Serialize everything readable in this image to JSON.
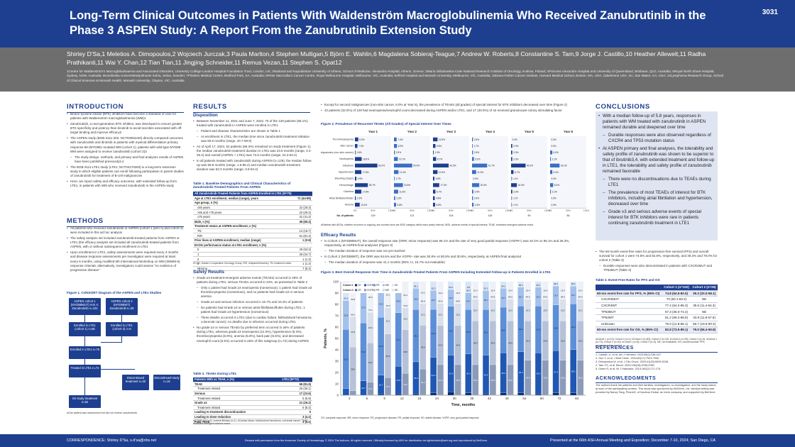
{
  "header": {
    "title": "Long-Term Clinical Outcomes in Patients With Waldenström Macroglobulinemia Who Received Zanubrutinib in the Phase 3 ASPEN Study: A Report From the Zanubrutinib Extension Study",
    "poster_number": "3031"
  },
  "authors": "Shirley D'Sa,1 Meletios A. Dimopoulos,2 Wojciech Jurczak,3 Paula Marlton,4 Stephen Mulligan,5 Björn E. Wahlin,6 Magdalena Sobieraj-Teague,7 Andrew W. Roberts,8 Constantine S. Tam,9 Jorge J. Castillo,10 Heather Allewelt,11 Radha Prathikanti,11 Wai Y. Chan,12 Tian Tian,11 Jingjing Schneider,11 Remus Vezan,11 Stephen S. Opat12",
  "affiliations": "1Centre for Waldenström's Macroglobulinaemia and Associated Disorders, University College London Hospital Foundation Trust, London, UK; 2National and Kapodistrian University of Athens, School of Medicine, Alexandra Hospital, Athens, Greece; 3Maria Sklodowska-Curie National Research Institute of Oncology, Krakow, Poland; 4Princess Alexandra Hospital and University of Queensland, Brisbane, QLD, Australia; 5Royal North Shore Hospital, Sydney, NSW, Australia; 6Karolinska Universitetssjukhuset Solna, Solna, Sweden; 7Flinders Medical Centre, Bedford Park, SA, Australia; 8Peter MacCallum Cancer Centre, Royal Melbourne Hospital, Melbourne, VIC, Australia; 9Alfred Hospital and Monash University, Melbourne, VIC, Australia; 10Dana-Farber Cancer Institute, Harvard Medical School, Boston, MA, USA; 11BeiGene USA, Inc, San Mateo, CA, USA; 12Lymphoma Research Group, School of Clinical Sciences at Monash Health, Monash University, Clayton, VIC, Australia",
  "sections": {
    "introduction": "INTRODUCTION",
    "methods": "METHODS",
    "results": "RESULTS",
    "conclusions": "CONCLUSIONS",
    "references": "REFERENCES",
    "acknowledgments": "ACKNOWLEDGMENTS"
  },
  "introduction": [
    "Bruton tyrosine kinase (BTK) inhibitors have become a standard of care for patients with Waldenström macroglobulinemia (WM)1",
    "Zanubrutinib, a next-generation BTK inhibitor, was developed to ensure greater BTK specificity and potency than ibrutinib to avoid toxicities associated with off-target binding and improve efficacy2",
    "The ASPEN study (BGB-3111-302; NCT03053440) directly compared outcomes with zanubrutinib and ibrutinib in patients with myeloid differentiation primary response 88 (MYD88)–mutated WM (cohort 1); patients with wild-type MYD88 WM were assigned to receive zanubrutinib (cohort 2)3",
    "The study design, methods, and primary and final analyses results of ASPEN have been published previously3,4",
    "The BGB-3111-LTE1 study (LTE1; NCT04170283) is a long-term extension study in which eligible patients can enroll following participation in parent studies of zanubrutinib for treatment of B-cell malignancies",
    "Here, we report safety and efficacy outcomes, with extended follow-up from LTE1, in patients with WM who received zanubrutinib in the ASPEN study"
  ],
  "methods": [
    "All patients who received zanubrutinib in ASPEN (cohort 1 [arm A] and cohort 2) were included in this ad hoc analysis",
    "The safety analysis set included zanubrutinib-treated patients from ASPEN or LTE1 (the efficacy analysis set included all zanubrutinib-treated patients from ASPEN, with or without subsequent enrollment in LTE1",
    "Upon enrollment in LTE1, safety assessments were required every 3 months and disease response assessments per investigator were required at least every 6 months, using modified 6th International Workshop on WM (IWWM-6) response criteria5; alternatively, investigators could assess \"no evidence of progressive disease\""
  ],
  "consort": {
    "caption": "Figure 1. CONSORT Diagram of the ASPEN and LTE1 Studies",
    "boxes": [
      "ASPEN cohort 1 (MYD88MUT) Arm A: Zanubrutinib n=102",
      "ASPEN cohort 2 (MYD88WT) Zanubrutinib n=28",
      "Enrolled in LTE1 (cohort 1) n=66",
      "Enrolled in LTE1 (cohort 2) n=9",
      "Enrolled in LTE1 n=75",
      "Treated in LTE1 n=72",
      "Discontinued treatment n=20",
      "Discontinued study n=16",
      "On study treatment n=52"
    ],
    "note": "aOne patient was randomized but did not receive zanubrutinib."
  },
  "disposition": {
    "title": "Disposition",
    "items": [
      "Between November 11, 2021 and June 7, 2022, 75 of the 129 patients (58.1%) treated with zanubrutinib in ASPEN were enrolled in LTE1",
      "Patient and disease characteristics are shown in Table 1",
      "At enrollment in LTE1, the median time since zanubrutinib treatment initiation was 50.6 months (range, 40.7-59.9)",
      "As of April 17, 2024, 52 patients (69.3%) remained on study treatment (Figure 1); the median zanubrutinib treatment duration in LTE1 was 23.8 months (range, 0.4-29.4) and overall (ASPEN + LTE1) was 73.5 months (range, 22.3-84.2)",
      "In all patients treated with zanubrutinib during ASPEN (n=129), the median follow-up was 69.8 months (range, 1.6-85.4) and median zanubrutinib treatment duration was 63.3 months (range, 0.8-84.2)"
    ]
  },
  "table1": {
    "caption": "Table 1. Baseline Demographics and Clinical Characteristics of Zanubrutinib-Treated Patients From ASPEN",
    "header": [
      "All Zanubrutinib-Treated Patients from ASPEN Enrolled in LTE1 (N=75)",
      ""
    ],
    "rows": [
      [
        "Age at LTE1 enrollment, median (range), years",
        "71 (44-89)"
      ],
      [
        "Age group, n (%)",
        ""
      ],
      [
        "≤65 years",
        "22 (29.3)"
      ],
      [
        ">65 and <75 years",
        "22 (29.3)"
      ],
      [
        "≥75 years",
        "31 (41.3)"
      ],
      [
        "Male, n (%)",
        "49 (65.3)"
      ],
      [
        "Treatment status at ASPEN enrollment, n (%)",
        ""
      ],
      [
        "TN",
        "14 (18.7)"
      ],
      [
        "R/R",
        "61 (81.3)"
      ],
      [
        "Prior lines at ASPEN enrollment, median (range)",
        "1 (0-8)"
      ],
      [
        "ECOG performance status at LTE1 enrollment, n (%)",
        ""
      ],
      [
        "0",
        "40 (53.3)"
      ],
      [
        "1",
        "26 (34.7)"
      ],
      [
        "2",
        "1 (1.3)"
      ],
      [
        "3",
        "1 (1.3)"
      ],
      [
        "Missing",
        "7 (9.3)"
      ]
    ],
    "note": "ECOG, Eastern Cooperative Oncology Group; R/R, relapsed/refractory; TN, treatment-naïve."
  },
  "safety": {
    "title": "Safety Results",
    "items": [
      "Grade ≥3 treatment-emergent adverse events (TEAEs) occurred in 29% of patients during LTE1; serious TEAEs occurred in 24%, as presented in Table 2",
      "Only 1 patient had Grade ≥3 neutropenia (nonserious); 1 patient had Grade ≥3 thrombocytopenia (nonserious), and no patients had Grade ≥3 or serious anemia",
      "Grade ≥3 and serious infection occurred in 16.7% and 15.3% of patients",
      "No patients had Grade ≥3 or serious atrial fibrillation/flutter during LTE1; 1 patient had Grade ≥3 hypertension (nonserious)",
      "Three deaths occurred in LTE1 (due to cardiac failure, fall/subdural hematoma, colorectal cancer); no deaths due to infection occurred during LTE1",
      "No grade ≥3 or serious TEAEs by preferred term occurred in ≥5% of patients during LTE1, whereas grade ≥3 neutropenia (21.0%), hypertension (8.3%), thrombocytopenia (6.9%), anemia (5.6%), back pain (5.6%), and decreased neutrophil count (5.6%) occurred in ≥5% of this subgroup (n=72) during ASPEN"
    ]
  },
  "table2": {
    "caption": "Table 2. TEAEs During LTE1",
    "header": [
      "Patients With ≥1 TEAE, n (%)",
      "LTE1 (N=72)"
    ],
    "rows": [
      [
        "TEAE",
        "59 (81.9)"
      ],
      [
        "Treatment related",
        "26 (36.1)"
      ],
      [
        "Serious",
        "17 (23.6)"
      ],
      [
        "Treatment related",
        "5 (6.9)"
      ],
      [
        "Grade ≥3",
        "21 (29.2)"
      ],
      [
        "Treatment related",
        "6 (8.3)"
      ],
      [
        "Leading to treatment discontinuation",
        "0"
      ],
      [
        "Leading to dose reduction",
        "3 (4.2)"
      ],
      [
        "Fatal TEAE",
        "3 (4.2)"
      ]
    ],
    "note": "aCOVID-19 (n=2), ureteral lithiasis (n=1). bCardiac failure, fall/subdural hematoma, colorectal cancer. TEAE, treatment-emergent adverse event."
  },
  "col3_top": [
    "Except for second malignancies (non-skin cancer, 6.0% at Year 6), the prevalence of TEAEs (all grades) of special interest for BTK inhibitors decreased over time (Figure 2)",
    "42 patients (32.6%) of 129 had neutropenia/neutrophil count decreased during ASPEN and/or LTE1, and 17 (40.5%) of 42 received granulocyte-colony stimulating factor"
  ],
  "fig2": {
    "caption": "Figure 2. Prevalence of Recurrent TEAEs (All Grades) of Special Interest Over Timea",
    "years": [
      "Year 1",
      "Year 2",
      "Year 3",
      "Year 4",
      "Year 5",
      "Year 6"
    ],
    "categories": [
      "Thrombocytopenia",
      "Skin cancer",
      "Second malignancies (non-skin cancer)",
      "Neutropenia",
      "Infections",
      "Hypertension",
      "Bleeding (major)",
      "Hemorrhage",
      "Diarrhea",
      "Atrial fibrillation/flutter",
      "Anemia"
    ],
    "values": [
      [
        9.3,
        7.4,
        12.5,
        2.6,
        0.0,
        0.0
      ],
      [
        7.0,
        8.3,
        6.8,
        1.7,
        3.3,
        0.0
      ],
      [
        1.6,
        2.5,
        1.9,
        2.6,
        3.3,
        6.0
      ],
      [
        18.6,
        10.7,
        8.7,
        5.2,
        3.3,
        2.1
      ],
      [
        62.0,
        50.4,
        43.3,
        41.7,
        40.0,
        26.1
      ],
      [
        17.8,
        12.4,
        12.5,
        11.3,
        6.7,
        6.0
      ],
      [
        3.9,
        1.7,
        3.8,
        0.0,
        1.1,
        0.0
      ],
      [
        35.7,
        24.8,
        17.3,
        20.0,
        16.0,
        8.4
      ],
      [
        17.8,
        11.6,
        6.7,
        3.5,
        3.3,
        2.1
      ],
      [
        2.3,
        3.3,
        4.8,
        2.6,
        1.1,
        0.0
      ],
      [
        13.2,
        5.8,
        5.8,
        4.3,
        1.1,
        0.0
      ]
    ],
    "n_at_risk": [
      "129",
      "121",
      "104",
      "115",
      "90",
      "84"
    ],
    "axis_ticks": [
      "0%",
      "50%",
      "100%"
    ],
    "n_label": "No. of patients",
    "note": "aPatients with AESIs, whether recurrent or ongoing, are counted once per AESI category within each yearly interval. AESI, adverse events of special interest; TEAE, treatment-emergent adverse event."
  },
  "efficacy": {
    "title": "Efficacy Results",
    "items": [
      "In Cohort 1 (MYD88MUT), the overall response rate (ORR; minor response) was 96.1% and the rate of very good partial response (VGPR+) was 40.2% vs 95.1% and 36.3%, respectively, at ASPEN final analysis4 (Figure 3)",
      "The median duration of response was not yet reached",
      "In Cohort 2 (MYD88WT), the ORR was 84.6% and the VGPR+ rate was 30.8% vs 80.8% and 30.8%, respectively, at ASPEN final analysis4",
      "The median duration of response was 41.1 months (95% CI, 15.7%-not evaluable)"
    ]
  },
  "chart_data": {
    "type": "bar",
    "title": "Figure 3. Best Overall Response Over Time in Zanubrutinib-Treated Patients From ASPEN Including Extended Follow-up in Patients Enrolled in LTE1",
    "xlabel": "Time, months",
    "ylabel": "Patients, %",
    "ylim": [
      0,
      100
    ],
    "yticks": [
      0,
      10,
      20,
      30,
      40,
      50,
      60,
      70,
      80,
      90,
      100
    ],
    "categories": [
      "3",
      "6",
      "9",
      "12",
      "18",
      "24",
      "30",
      "36",
      "42",
      "48",
      "54",
      "60",
      "72",
      "84"
    ],
    "legend": {
      "cohort1_label": "Cohort 1",
      "cohort2_label": "Cohort 2",
      "entries": [
        "CR",
        "VGPR",
        "PR",
        "MR",
        "SD"
      ]
    },
    "series": [
      {
        "name": "CR",
        "color": "#0b2a6f"
      },
      {
        "name": "VGPR",
        "color": "#1f57b3"
      },
      {
        "name": "PR",
        "color": "#5d8fd8"
      },
      {
        "name": "MR",
        "color": "#a3c1ec"
      },
      {
        "name": "SD",
        "color": "#d8e5f8"
      }
    ],
    "cohort1": {
      "ORR": [
        83.3,
        91.2,
        92.1,
        93.1,
        94.1,
        92.2,
        93.1,
        90.2,
        92.2,
        94.1,
        95.1,
        95.1,
        96.1,
        96.1
      ],
      "CR": [
        0.0,
        0.0,
        1.0,
        1.0,
        1.0,
        2.0,
        2.9,
        2.0,
        1.0,
        2.0,
        2.0,
        1.0,
        2.0,
        2.0
      ],
      "VGPR": [
        5.9,
        12.7,
        16.7,
        24.5,
        28.4,
        31.4,
        32.4,
        34.3,
        34.3,
        35.3,
        36.3,
        36.3,
        37.3,
        38.2
      ],
      "PR": [
        52.0,
        51.0,
        51.0,
        47.1,
        46.1,
        42.2,
        43.1,
        39.2,
        40.2,
        40.2,
        40.2,
        41.2,
        40.2,
        40.2
      ],
      "MR": [
        25.5,
        27.5,
        23.5,
        20.6,
        18.6,
        16.7,
        14.7,
        14.7,
        16.7,
        16.7,
        16.7,
        16.7,
        16.7,
        15.7
      ],
      "SD": [
        16.7,
        8.8,
        7.8,
        5.9,
        5.9,
        7.8,
        6.9,
        9.8,
        7.8,
        5.9,
        4.9,
        4.9,
        3.9,
        3.9
      ]
    },
    "cohort2": {
      "ORR": [
        69.2,
        73.1,
        76.9,
        76.9,
        80.8,
        80.8,
        80.8,
        84.6,
        84.6,
        84.6,
        84.6,
        84.6,
        84.6,
        84.6
      ],
      "CR": [
        0,
        0,
        0,
        0,
        0,
        0,
        0,
        0,
        0,
        0,
        0,
        0,
        0,
        0
      ],
      "VGPR": [
        3.8,
        11.5,
        15.4,
        19.2,
        23.1,
        26.9,
        26.9,
        26.9,
        26.9,
        26.9,
        30.8,
        30.8,
        30.8,
        30.8
      ],
      "PR": [
        38.5,
        34.6,
        38.5,
        38.5,
        38.5,
        34.6,
        34.6,
        38.5,
        38.5,
        38.5,
        34.6,
        34.6,
        34.6,
        34.6
      ],
      "MR": [
        26.9,
        26.9,
        23.1,
        19.2,
        19.2,
        19.2,
        19.2,
        19.2,
        19.2,
        19.2,
        19.2,
        19.2,
        19.2,
        19.2
      ],
      "SD": [
        30.8,
        26.9,
        23.1,
        23.1,
        19.2,
        19.2,
        19.2,
        15.4,
        15.4,
        15.4,
        15.4,
        15.4,
        15.4,
        15.4
      ]
    },
    "note": "CR, complete response; MR, minor response; PD, progressive disease; PR, partial response; SD, stable disease; VGPR, very good partial response."
  },
  "conclusions": [
    {
      "t": "With a median follow-up of 5.8 years, responses in patients with WM treated with zanubrutinib in ASPEN remained durable and deepened over time",
      "sub": false
    },
    {
      "t": "Durable responses were also observed regardless of CXCR4 and TP53 mutation status",
      "sub": true
    },
    {
      "t": "At ASPEN primary and final analyses, the tolerability and safety profile of zanubrutinib was shown to be superior to that of ibrutinib3,4, with extended treatment and follow-up in LTE1, the tolerability and safety profile of zanubrutinib remained favorable",
      "sub": false
    },
    {
      "t": "There were no discontinuations due to TEAEs during LTE1",
      "sub": true
    },
    {
      "t": "The prevalence of most TEAEs of interest for BTK inhibitors, including atrial fibrillation and hypertension, decreased over time",
      "sub": true
    },
    {
      "t": "Grade ≥3 and serious adverse events of special interest for BTK inhibitors were rare in patients continuing zanubrutinib treatment in LTE1",
      "sub": true
    }
  ],
  "pfs": [
    {
      "t": "The 60-month event-free rates for progression-free survival (PFS) and overall survival for cohort 1 were 74.8% and 82.8%, respectively, and 39.3% and 79.0% for cohort 2 (Table 3)",
      "sub": false
    },
    {
      "t": "Durable responses were also demonstrated in patients with CXCR4MUT and TP53MUT (Table 3)",
      "sub": true
    }
  ],
  "table3": {
    "caption": "Table 3. Event-Free Rates for PFS and OS",
    "header": [
      "",
      "Cohort 1 (n=102)",
      "Cohort 2 (n=26)"
    ],
    "rows": [
      [
        "60-mo event-free rate for PFS, % (95% CI)",
        "74.8 (64.5-82.5)",
        "39.3 (20.0-58.1)",
        "shade"
      ],
      [
        "CXCR4MUT",
        "70 (50.1-83.2)",
        "NE",
        ""
      ],
      [
        "CXCR4WT",
        "77.4 (64.2-86.3)",
        "35.6 (11.4-64.3)",
        ""
      ],
      [
        "TP53MUT",
        "57.3 (35.0-74.4)",
        "NE",
        ""
      ],
      [
        "TP53WT",
        "81.2 (69.2-88.9)",
        "33.8 (11.8-57.5)",
        ""
      ],
      [
        "Unknown",
        "75.0 (12.8-96.1)",
        "66.7 (19.5-90.4)",
        ""
      ],
      [
        "60-mo event-free rate for OS, % (95% CI)",
        "82.8 (73.5-89.1)",
        "79.0 (56.4-90.8)",
        "shade"
      ]
    ],
    "note": "aCohort 1 (n=12); Cohort 2 (n=1). bCohort 1 (n=82); Cohort 2 (n=15). cCohort 1 (n=25); Cohort 2 (n=4). dCohort 1 (n=73); Cohort 2 (n=20). eCohort 1 (n=5); Cohort 2 (n=3). NE, not evaluable; OS, overall survival; PFS, progression-free survival."
  },
  "references": [
    "1. Castillo JJ, et al. Am J Hematol. 2023;98(2):338-347.",
    "2. Guo Y, et al. J Med Chem. 2019;62(17):7923-7940.",
    "3. Dimopoulos M, et al. J Clin Oncol. 2023;41(33):5099-5106.",
    "4. Tam CS, et al. Blood. 2020;136(18):2038-2050.",
    "5. Owen R, et al. Br J Haematol. 2013;160(2):171-176."
  ],
  "acknowledgments": "The authors thank the patients and their families, investigators, co-investigators, and the study teams at each of the participating centers. This study was sponsored by BeiGene, Ltd. Medical writing was provided by Nancy Tang, PharmD, of Nucleus Global, an Inizio company, and supported by BeiGene.",
  "footer": {
    "left": "CORRESPONDENCE: Shirley D'Sa, s.d'sa@nhs.net",
    "center": "Reused with permission from the American Society of Hematology. © 2024 The Authors. All rights reserved. Officially licensed by ASH for distribution via rightsholder@ash.org and reproduced by BeiGene.",
    "right": "Presented at the 66th ASH Annual Meeting and Exposition; December 7-10, 2024; San Diego, CA"
  }
}
